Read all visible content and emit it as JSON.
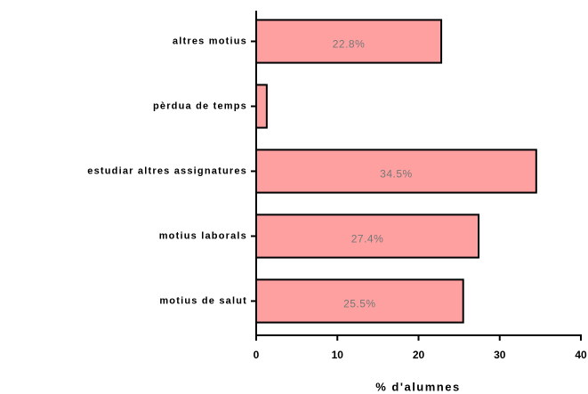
{
  "chart_data": {
    "type": "bar",
    "orientation": "horizontal",
    "x_label": "% d'alumnes",
    "categories": [
      "altres motius",
      "pèrdua de temps",
      "estudiar altres assignatures",
      "motius laborals",
      "motius de salut"
    ],
    "values": [
      22.8,
      1.3,
      34.5,
      27.4,
      25.5
    ],
    "value_labels": [
      "22.8%",
      null,
      "34.5%",
      "27.4%",
      "25.5%"
    ],
    "color": "#ffa0a0",
    "xlim": [
      0,
      40
    ],
    "xticks": [
      0,
      10,
      20,
      30,
      40
    ]
  }
}
